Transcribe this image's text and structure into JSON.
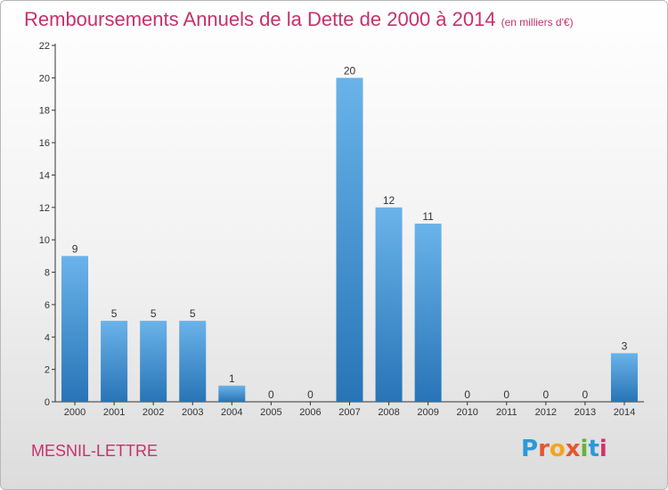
{
  "title": "Remboursements Annuels de la Dette de 2000 à 2014",
  "subtitle": "(en milliers d'€)",
  "commune": "MESNIL-LETTRE",
  "logo": {
    "text": "Proxiti",
    "colors": [
      "#2a9ad8",
      "#e8552d",
      "#f3a51a",
      "#e8552d",
      "#63b33a",
      "#2a9ad8",
      "#d6306e"
    ]
  },
  "colors": {
    "bar_light": "#6ab3ea",
    "bar_dark": "#2874b6",
    "title": "#c8306b"
  },
  "chart_data": {
    "type": "bar",
    "categories": [
      "2000",
      "2001",
      "2002",
      "2003",
      "2004",
      "2005",
      "2006",
      "2007",
      "2008",
      "2009",
      "2010",
      "2011",
      "2012",
      "2013",
      "2014"
    ],
    "values": [
      9,
      5,
      5,
      5,
      1,
      0,
      0,
      20,
      12,
      11,
      0,
      0,
      0,
      0,
      3
    ],
    "ylim": [
      0,
      22
    ],
    "yticks": [
      0,
      2,
      4,
      6,
      8,
      10,
      12,
      14,
      16,
      18,
      20,
      22
    ],
    "grid": false
  }
}
